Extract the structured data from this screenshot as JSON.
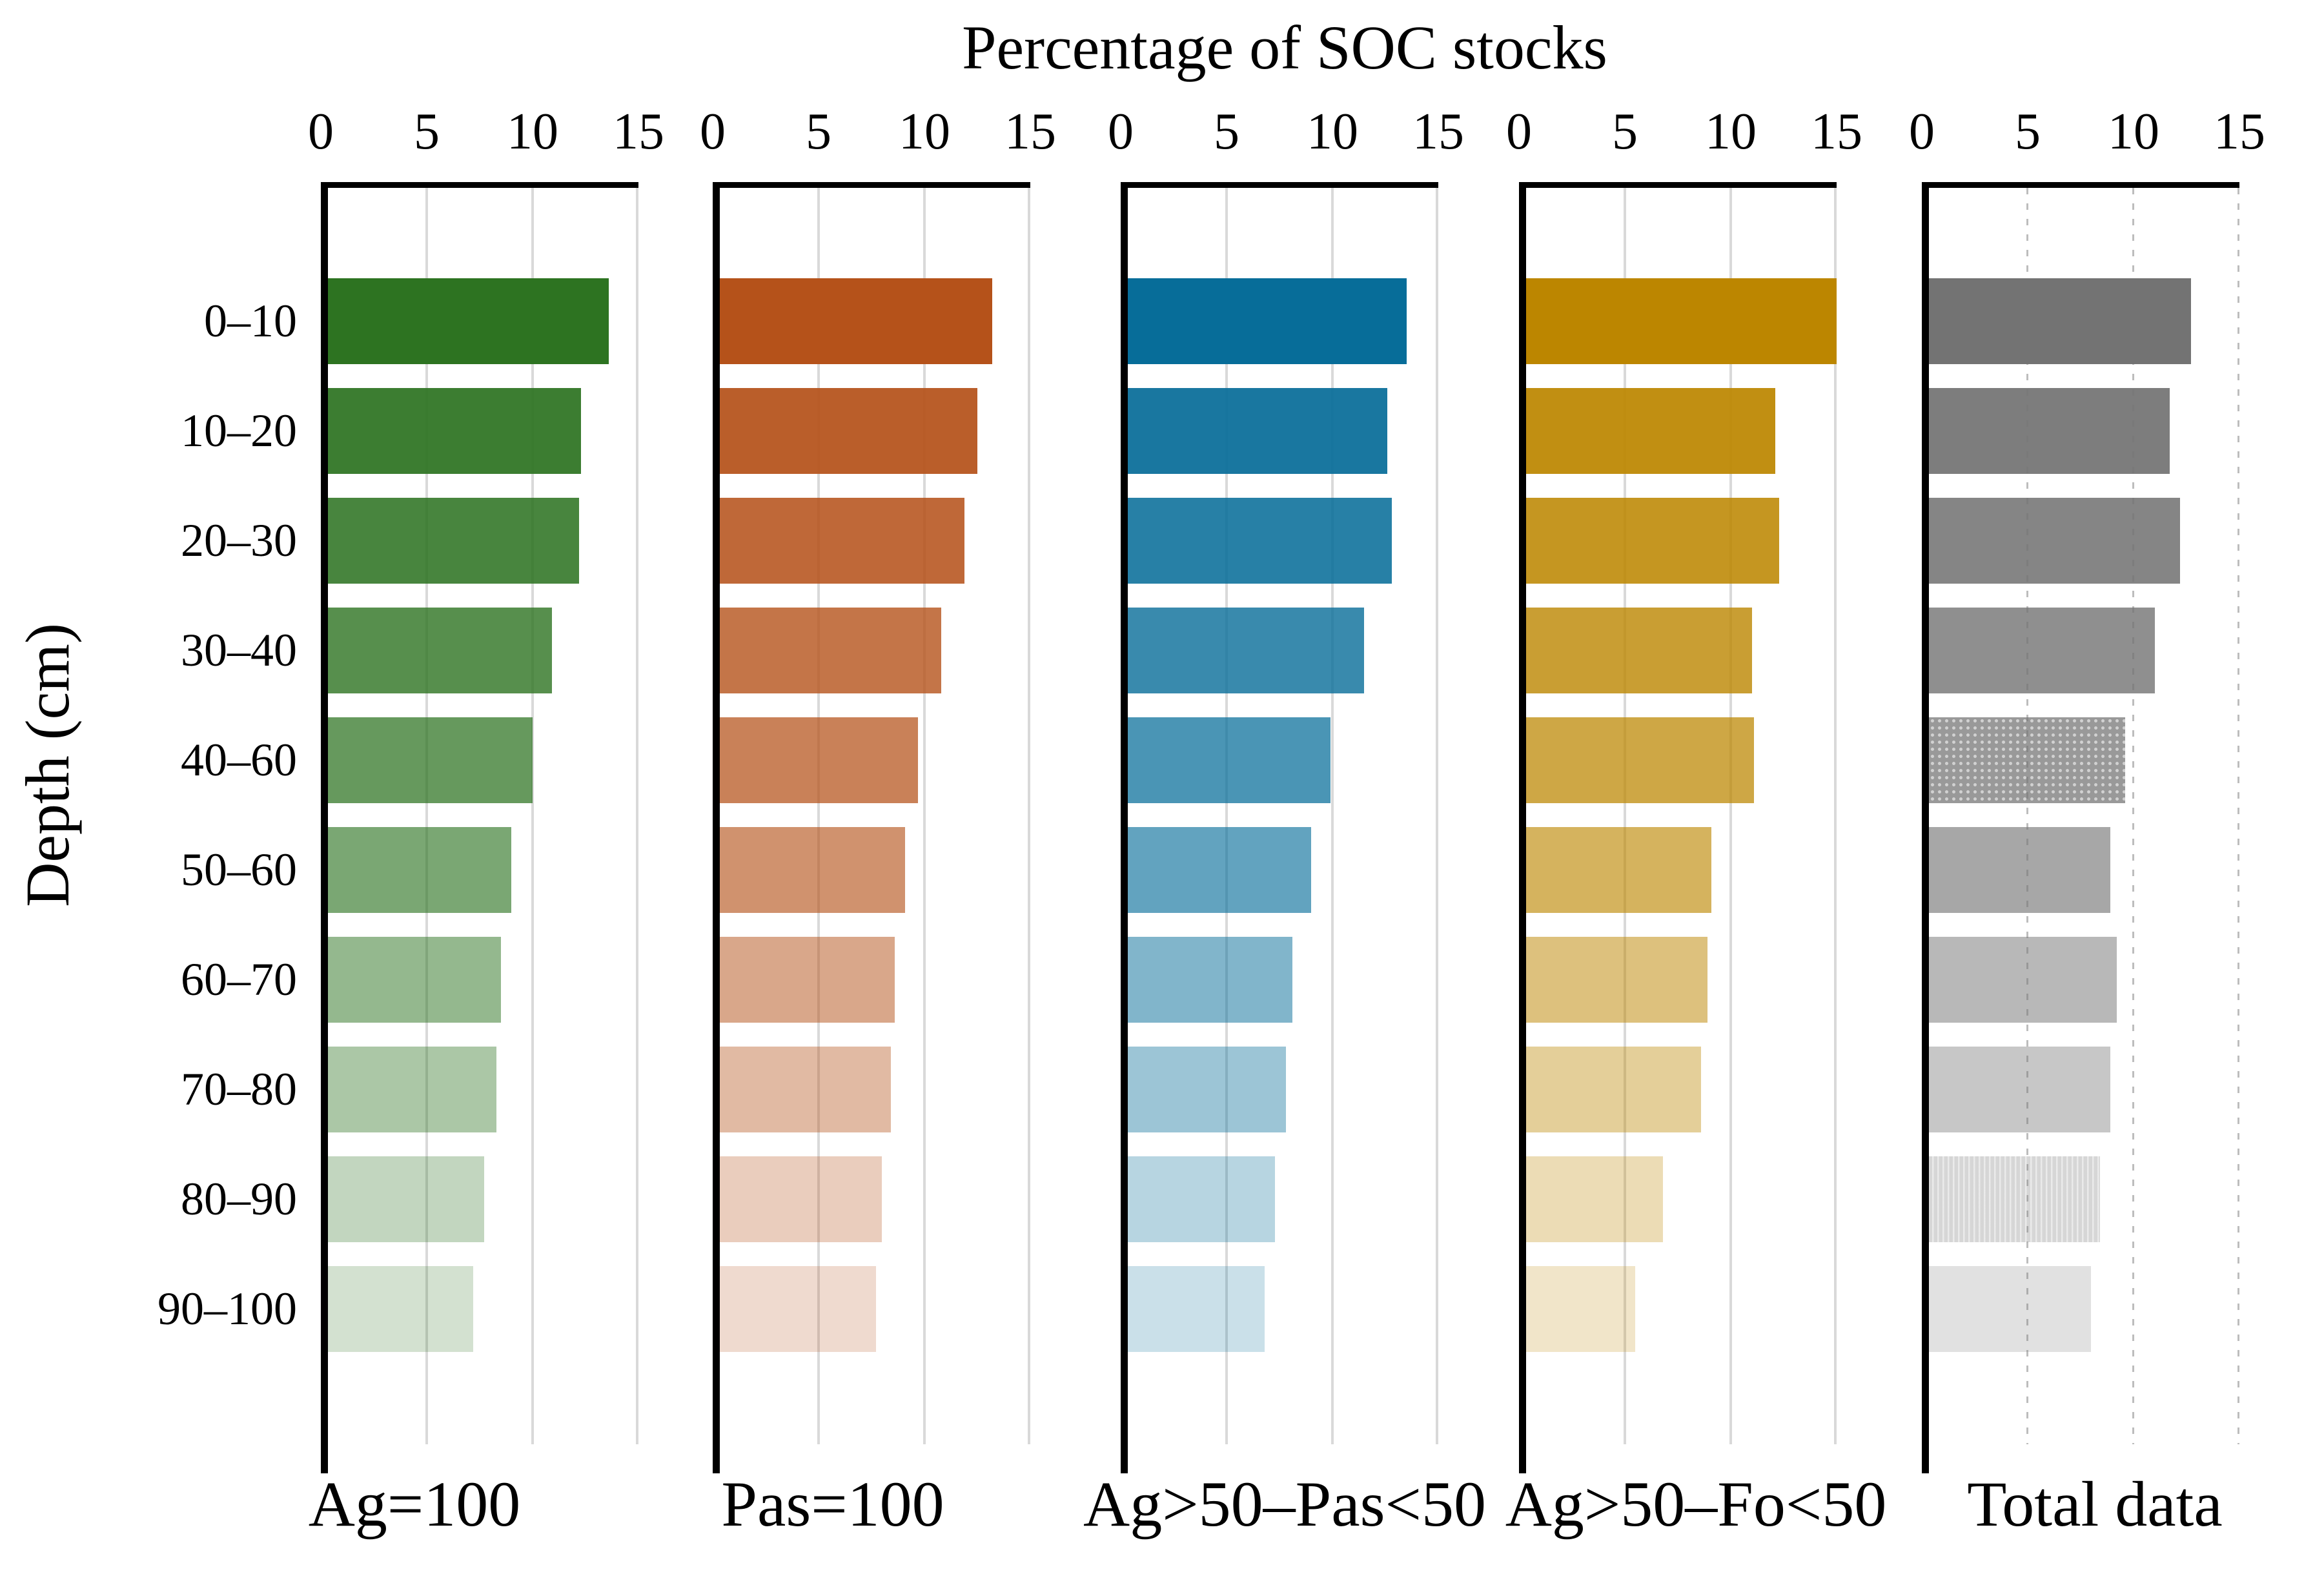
{
  "chart_data": {
    "type": "bar",
    "orientation": "horizontal",
    "title": "Percentage of SOC stocks",
    "ylabel": "Depth (cm)",
    "xlim": [
      0,
      15
    ],
    "x_ticks": [
      0,
      5,
      10,
      15
    ],
    "grid": true,
    "gridline_color": "#D9D9D9",
    "axis_color": "#000000",
    "background_color": "#FFFFFF",
    "legend_position": "bottom",
    "categories": [
      "0–10",
      "10–20",
      "20–30",
      "30–40",
      "40–60",
      "50–60",
      "60–70",
      "70–80",
      "80–90",
      "90–100"
    ],
    "fade_alphas": [
      1,
      0.93,
      0.87,
      0.8,
      0.73,
      0.63,
      0.51,
      0.4,
      0.29,
      0.21
    ],
    "series": [
      {
        "name": "Ag=100",
        "color": "#2D7321",
        "values": [
          13.6,
          12.3,
          12.2,
          10.9,
          10.0,
          9.0,
          8.5,
          8.3,
          7.7,
          7.2
        ]
      },
      {
        "name": "Pas=100",
        "color": "#B5521A",
        "values": [
          13.2,
          12.5,
          11.9,
          10.8,
          9.7,
          9.1,
          8.6,
          8.4,
          8.0,
          7.7
        ]
      },
      {
        "name": "Ag>50–Pas<50",
        "color": "#076D99",
        "values": [
          13.5,
          12.6,
          12.8,
          11.5,
          9.9,
          9.0,
          8.1,
          7.8,
          7.3,
          6.8
        ]
      },
      {
        "name": "Ag>50–Fo<50",
        "color": "#BC8600",
        "values": [
          15.0,
          12.1,
          12.3,
          11.0,
          11.1,
          9.1,
          8.9,
          8.6,
          6.8,
          5.5
        ]
      },
      {
        "name": "Total data",
        "color": "#737373",
        "values": [
          12.7,
          11.7,
          12.2,
          11.0,
          9.6,
          8.9,
          9.2,
          8.9,
          8.4,
          8.0
        ],
        "grid_style": "dotted",
        "textures": {
          "4": "dots",
          "8": "vlines"
        }
      }
    ]
  }
}
